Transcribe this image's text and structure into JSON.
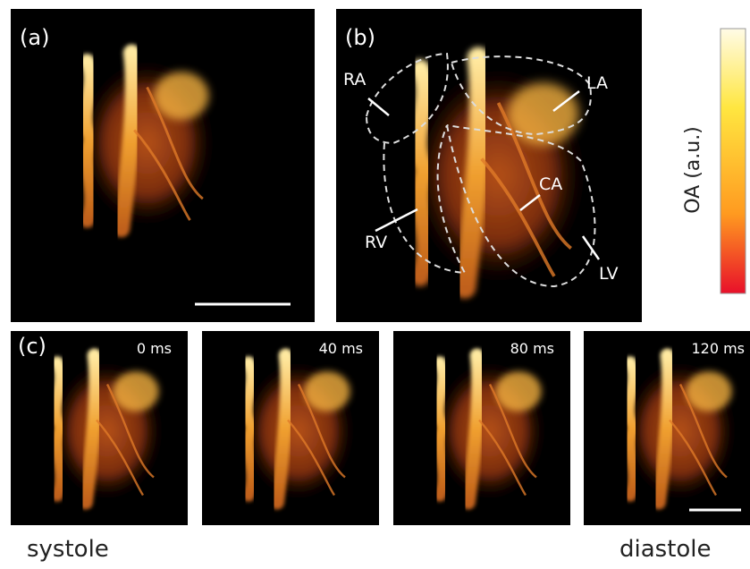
{
  "panels": {
    "a": {
      "label": "(a)"
    },
    "b": {
      "label": "(b)",
      "annotations": [
        "RA",
        "LA",
        "CA",
        "RV",
        "LV"
      ]
    },
    "c": {
      "label": "(c)",
      "frames": [
        "0 ms",
        "40 ms",
        "80 ms",
        "120 ms"
      ]
    }
  },
  "colorbar": {
    "label": "OA (a.u.)"
  },
  "phases": {
    "start": "systole",
    "end": "diastole"
  }
}
